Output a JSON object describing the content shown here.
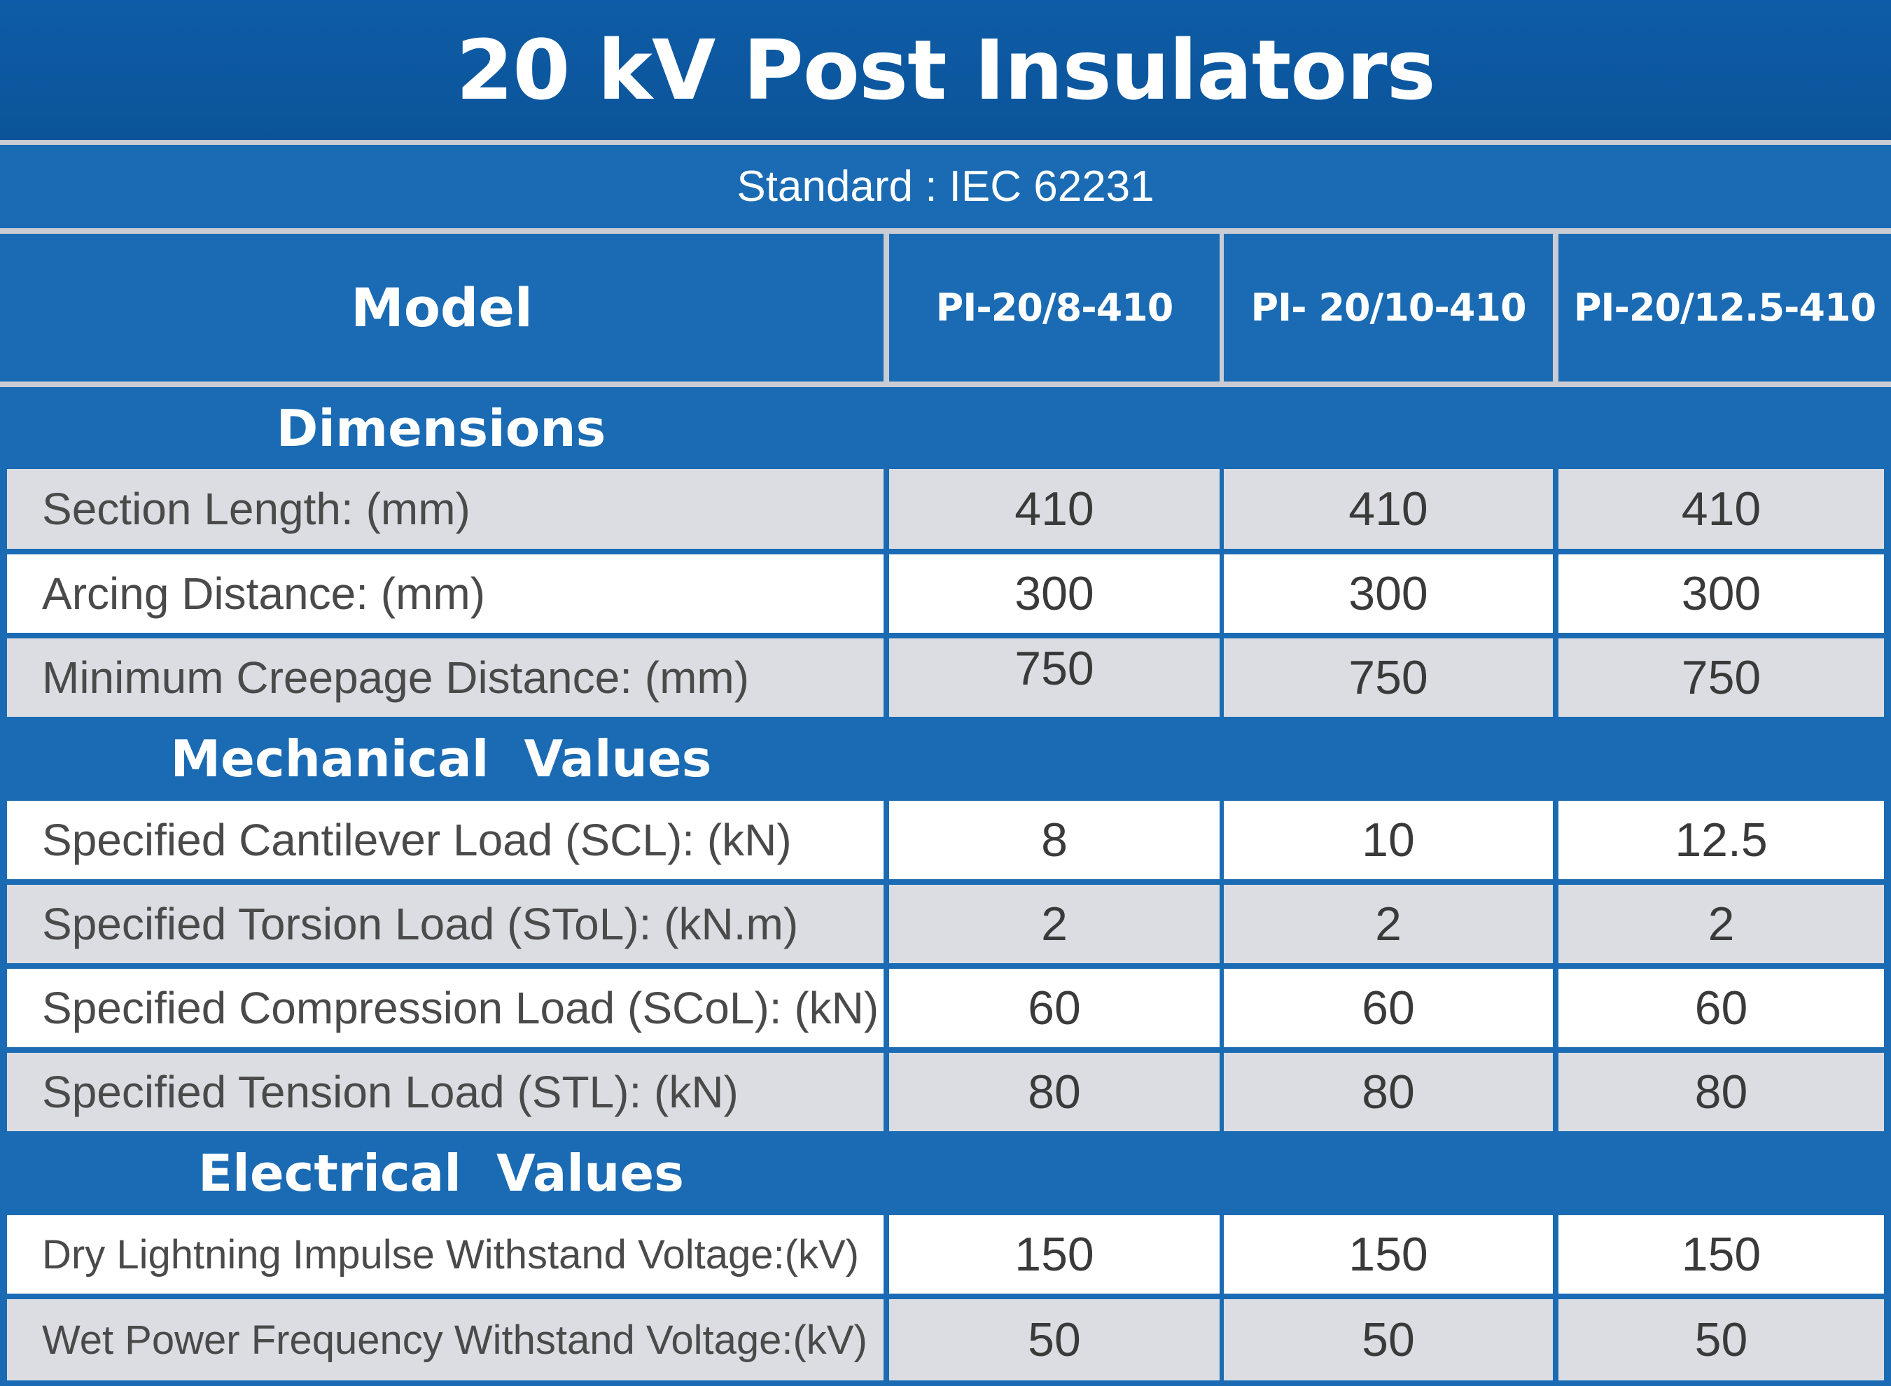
{
  "title": "20 kV Post Insulators",
  "standard": "Standard : IEC 62231",
  "header": {
    "model_label": "Model",
    "models": [
      "PI-20/8-410",
      "PI- 20/10-410",
      "PI-20/12.5-410"
    ]
  },
  "sections": {
    "dimensions": {
      "title": "Dimensions",
      "rows": [
        {
          "label": "Section Length: (mm)",
          "values": [
            "410",
            "410",
            "410"
          ]
        },
        {
          "label": "Arcing Distance: (mm)",
          "values": [
            "300",
            "300",
            "300"
          ]
        },
        {
          "label": "Minimum Creepage Distance: (mm)",
          "values": [
            "750",
            "750",
            "750"
          ]
        }
      ]
    },
    "mechanical": {
      "title": "Mechanical  Values",
      "rows": [
        {
          "label": "Specified Cantilever Load (SCL): (kN)",
          "values": [
            "8",
            "10",
            "12.5"
          ]
        },
        {
          "label": "Specified Torsion Load (SToL): (kN.m)",
          "values": [
            "2",
            "2",
            "2"
          ]
        },
        {
          "label": "Specified Compression Load (SCoL): (kN)",
          "values": [
            "60",
            "60",
            "60"
          ]
        },
        {
          "label": "Specified Tension Load (STL): (kN)",
          "values": [
            "80",
            "80",
            "80"
          ]
        }
      ]
    },
    "electrical": {
      "title": "Electrical  Values",
      "rows": [
        {
          "label": "Dry Lightning Impulse Withstand Voltage:(kV)",
          "values": [
            "150",
            "150",
            "150"
          ]
        },
        {
          "label": "Wet Power Frequency Withstand Voltage:(kV)",
          "values": [
            "50",
            "50",
            "50"
          ]
        }
      ]
    }
  },
  "colors": {
    "title_bg": "#0b5499",
    "header_bg": "#1a6bb3",
    "row_gray": "#dcdde2",
    "row_white": "#ffffff",
    "separator": "#c9ccd3"
  }
}
